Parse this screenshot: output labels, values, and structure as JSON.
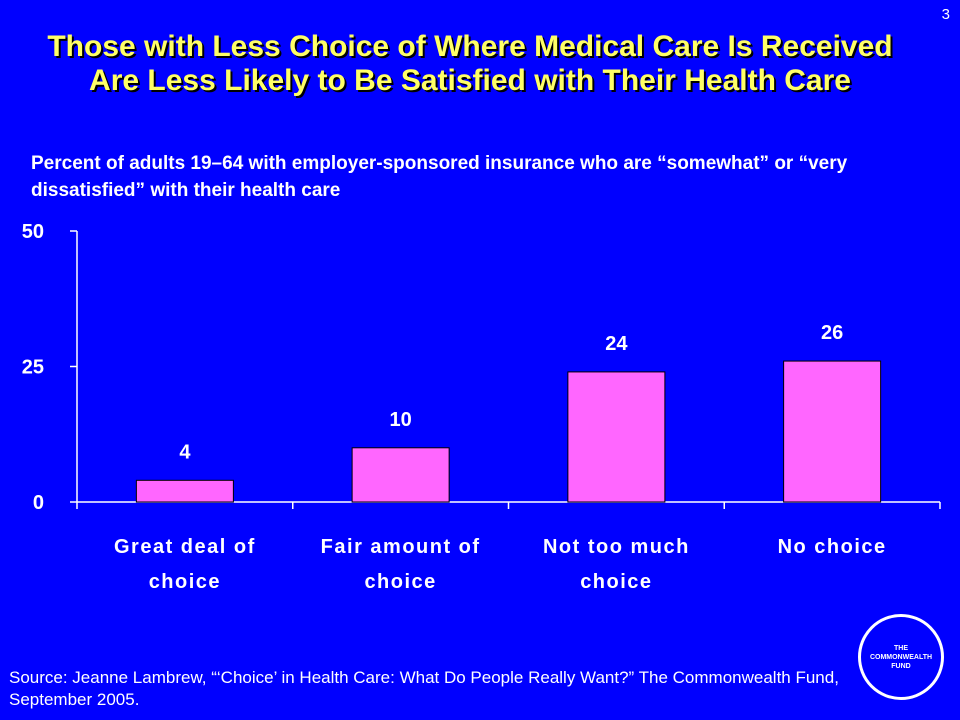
{
  "page_number": "3",
  "title": "Those with Less Choice of Where Medical Care Is Received Are Less Likely to Be Satisfied with Their Health Care",
  "subtitle": "Percent of adults 19–64 with employer-sponsored insurance who are “somewhat” or “very dissatisfied” with their health care",
  "source": "Source: Jeanne Lambrew, “‘Choice’ in Health Care: What Do People Really Want?” The Commonwealth Fund, September 2005.",
  "logo": {
    "line1": "THE",
    "line2": "COMMONWEALTH",
    "line3": "FUND"
  },
  "colors": {
    "background": "#0000FF",
    "title": "#FFFF66",
    "bar": "#FF66FF",
    "text": "#FFFFFF"
  },
  "chart_data": {
    "type": "bar",
    "categories": [
      [
        "Great deal of",
        "choice"
      ],
      [
        "Fair amount of",
        "choice"
      ],
      [
        "Not too much",
        "choice"
      ],
      [
        "No choice"
      ]
    ],
    "values": [
      4,
      10,
      24,
      26
    ],
    "data_labels": [
      "4",
      "10",
      "24",
      "26"
    ],
    "ylim": [
      0,
      50
    ],
    "yticks": [
      0,
      25,
      50
    ],
    "ytick_labels": [
      "0",
      "25",
      "50"
    ],
    "grid": false,
    "legend": "none"
  }
}
